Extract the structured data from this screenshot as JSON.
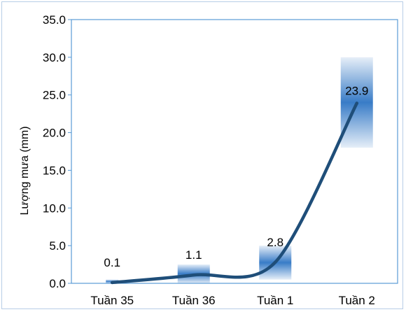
{
  "chart_data": {
    "type": "line",
    "title": "",
    "xlabel": "",
    "ylabel": "Lượng mưa (mm)",
    "categories": [
      "Tuần 35",
      "Tuần 36",
      "Tuần 1",
      "Tuần 2"
    ],
    "values": [
      0.1,
      1.1,
      2.8,
      23.9
    ],
    "data_labels": [
      "0.1",
      "1.1",
      "2.8",
      "23.9"
    ],
    "range_bands": [
      {
        "low": 0.0,
        "high": 0.5
      },
      {
        "low": 0.0,
        "high": 2.5
      },
      {
        "low": 0.5,
        "high": 5.0
      },
      {
        "low": 18.0,
        "high": 30.0
      }
    ],
    "ylim": [
      0,
      35
    ],
    "yticks": [
      "0.0",
      "5.0",
      "10.0",
      "15.0",
      "20.0",
      "25.0",
      "30.0",
      "35.0"
    ],
    "grid": false,
    "smooth": true,
    "colors": {
      "line": "#1f4e79",
      "band": "#2e75c4",
      "plot_border": "#5b9bd5",
      "frame_border": "#b7cde6"
    }
  }
}
